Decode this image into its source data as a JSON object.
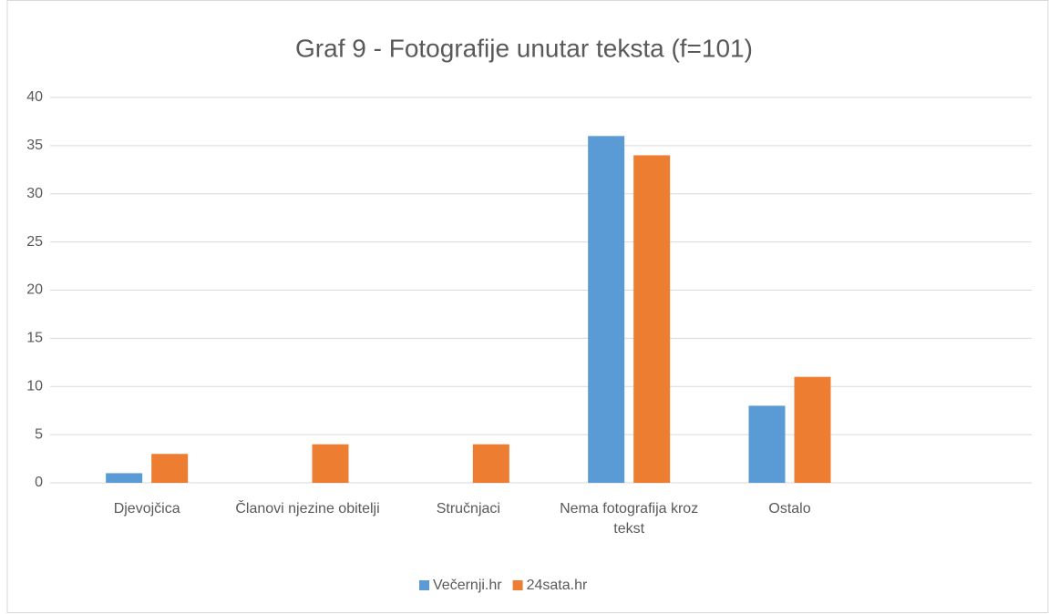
{
  "chart_data": {
    "type": "bar",
    "title": "Graf 9 - Fotografije unutar teksta (f=101)",
    "categories": [
      "Djevojčica",
      "Članovi njezine obitelji",
      "Stručnjaci",
      "Nema fotografija kroz tekst",
      "Ostalo",
      null
    ],
    "series": [
      {
        "name": "Večernji.hr",
        "color": "#5b9bd5",
        "values": [
          1,
          0,
          0,
          36,
          8,
          null
        ]
      },
      {
        "name": "24sata.hr",
        "color": "#ed7d31",
        "values": [
          3,
          4,
          4,
          34,
          11,
          null
        ]
      }
    ],
    "ylim": [
      0,
      40
    ],
    "yticks": [
      0,
      5,
      10,
      15,
      20,
      25,
      30,
      35,
      40
    ],
    "grid": true,
    "legend": "bottom"
  }
}
